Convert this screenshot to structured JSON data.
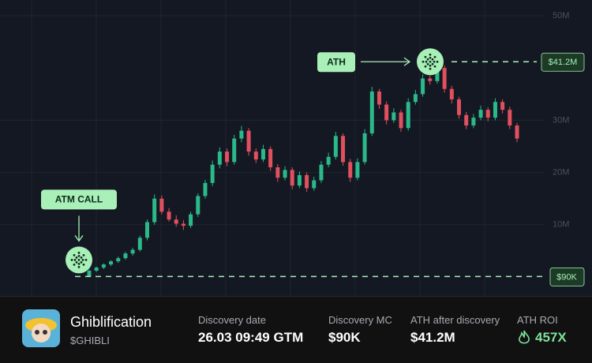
{
  "chart_data": {
    "type": "candlestick",
    "ylim": [
      0,
      50
    ],
    "yticks": [
      {
        "value": 10,
        "label": "10M"
      },
      {
        "value": 20,
        "label": "20M"
      },
      {
        "value": 30,
        "label": "30M"
      },
      {
        "value": 50,
        "label": "50M"
      }
    ],
    "grid": true,
    "up_color": "#2bb98a",
    "down_color": "#e0505e",
    "candles": [
      [
        0.09,
        1.4,
        0.09,
        1.2
      ],
      [
        1.2,
        2.0,
        1.0,
        1.8
      ],
      [
        1.8,
        2.6,
        1.5,
        2.4
      ],
      [
        2.4,
        3.2,
        2.1,
        3.0
      ],
      [
        3.0,
        3.9,
        2.7,
        3.6
      ],
      [
        3.6,
        4.8,
        3.3,
        4.5
      ],
      [
        4.5,
        5.6,
        4.1,
        5.2
      ],
      [
        5.2,
        7.9,
        4.9,
        7.5
      ],
      [
        7.5,
        11.0,
        7.0,
        10.5
      ],
      [
        10.5,
        15.8,
        10.0,
        15.0
      ],
      [
        15.0,
        15.6,
        12.0,
        12.5
      ],
      [
        12.5,
        13.2,
        10.6,
        11.0
      ],
      [
        11.0,
        11.8,
        9.6,
        10.2
      ],
      [
        10.2,
        10.9,
        9.0,
        9.8
      ],
      [
        9.8,
        12.5,
        9.4,
        12.0
      ],
      [
        12.0,
        16.0,
        11.5,
        15.5
      ],
      [
        15.5,
        18.6,
        15.0,
        18.0
      ],
      [
        18.0,
        22.3,
        17.4,
        21.5
      ],
      [
        21.5,
        24.8,
        20.8,
        24.0
      ],
      [
        24.0,
        24.6,
        21.2,
        22.0
      ],
      [
        22.0,
        27.2,
        21.5,
        26.5
      ],
      [
        26.5,
        28.9,
        25.8,
        28.0
      ],
      [
        28.0,
        28.5,
        23.2,
        24.0
      ],
      [
        24.0,
        24.6,
        21.8,
        22.5
      ],
      [
        22.5,
        25.3,
        22.0,
        24.5
      ],
      [
        24.5,
        25.0,
        20.3,
        21.0
      ],
      [
        21.0,
        21.6,
        18.2,
        19.0
      ],
      [
        19.0,
        21.2,
        18.5,
        20.5
      ],
      [
        20.5,
        21.0,
        16.8,
        17.5
      ],
      [
        17.5,
        20.2,
        17.0,
        19.5
      ],
      [
        19.5,
        20.0,
        16.3,
        17.0
      ],
      [
        17.0,
        19.2,
        16.5,
        18.5
      ],
      [
        18.5,
        22.2,
        18.0,
        21.5
      ],
      [
        21.5,
        23.8,
        21.0,
        23.0
      ],
      [
        23.0,
        27.8,
        22.5,
        27.0
      ],
      [
        27.0,
        27.5,
        21.3,
        22.0
      ],
      [
        22.0,
        22.6,
        18.2,
        19.0
      ],
      [
        19.0,
        22.7,
        18.5,
        22.0
      ],
      [
        22.0,
        28.3,
        21.5,
        27.5
      ],
      [
        27.5,
        36.4,
        27.0,
        35.5
      ],
      [
        35.5,
        36.0,
        32.2,
        33.0
      ],
      [
        33.0,
        33.6,
        29.2,
        30.0
      ],
      [
        30.0,
        32.3,
        29.5,
        31.5
      ],
      [
        31.5,
        32.0,
        27.8,
        28.5
      ],
      [
        28.5,
        34.2,
        28.0,
        33.5
      ],
      [
        33.5,
        35.8,
        33.0,
        35.0
      ],
      [
        35.0,
        38.8,
        34.5,
        38.0
      ],
      [
        38.0,
        38.6,
        36.8,
        37.5
      ],
      [
        37.5,
        41.2,
        37.0,
        40.0
      ],
      [
        40.0,
        40.5,
        35.3,
        36.0
      ],
      [
        36.0,
        36.6,
        33.2,
        34.0
      ],
      [
        34.0,
        34.5,
        30.3,
        31.0
      ],
      [
        31.0,
        31.6,
        28.3,
        29.0
      ],
      [
        29.0,
        31.2,
        28.5,
        30.5
      ],
      [
        30.5,
        32.8,
        30.0,
        32.0
      ],
      [
        32.0,
        32.5,
        29.8,
        30.5
      ],
      [
        30.5,
        34.2,
        30.0,
        33.5
      ],
      [
        33.5,
        34.0,
        31.3,
        32.0
      ],
      [
        32.0,
        32.6,
        28.3,
        29.0
      ],
      [
        29.0,
        29.5,
        25.8,
        26.5
      ]
    ],
    "entry": {
      "value": 0.09,
      "label": "$90K",
      "note": "ATM CALL"
    },
    "ath": {
      "value": 41.2,
      "label": "$41.2M",
      "note": "ATH"
    }
  },
  "token": {
    "name": "Ghiblification",
    "ticker": "$GHIBLI"
  },
  "stats": [
    {
      "label": "Discovery date",
      "value": "26.03 09:49 GTM"
    },
    {
      "label": "Discovery MC",
      "value": "$90K"
    },
    {
      "label": "ATH after discovery",
      "value": "$41.2M"
    },
    {
      "label": "ATH ROI",
      "value": "457X"
    }
  ]
}
